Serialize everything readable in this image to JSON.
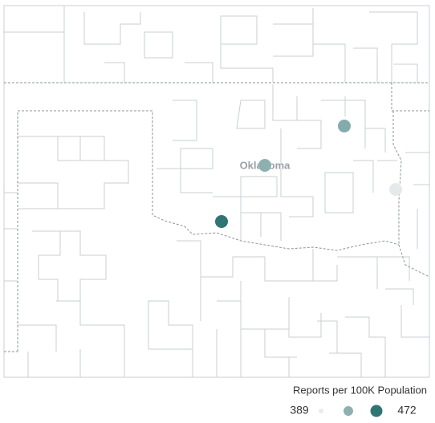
{
  "map": {
    "label": "Oklahoma",
    "points": [
      {
        "value": 472
      },
      {
        "value": 430
      },
      {
        "value": 434
      },
      {
        "value": 391
      }
    ],
    "legend": {
      "title": "Reports per 100K Population",
      "min": 389,
      "max": 472
    }
  }
}
